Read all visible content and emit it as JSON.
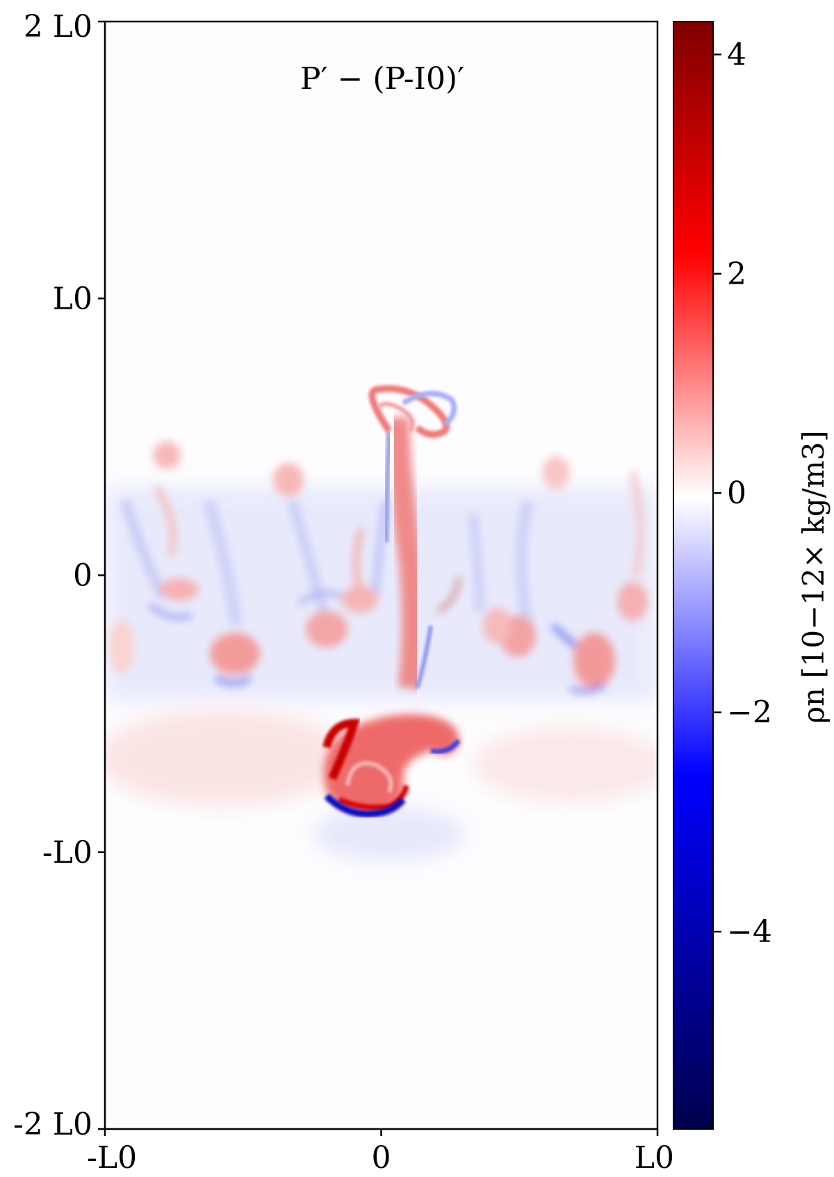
{
  "chart_data": {
    "type": "heatmap",
    "title": "P′ − (P-I0)′",
    "x_ticks": [
      {
        "value": -1,
        "label": "-L0"
      },
      {
        "value": 0,
        "label": "0"
      },
      {
        "value": 1,
        "label": "L0"
      }
    ],
    "y_ticks": [
      {
        "value": 2,
        "label": "2 L0"
      },
      {
        "value": 1,
        "label": "L0"
      },
      {
        "value": 0,
        "label": "0"
      },
      {
        "value": -1,
        "label": "-L0"
      },
      {
        "value": -2,
        "label": "-2 L0"
      }
    ],
    "xlim": [
      -1,
      1
    ],
    "ylim": [
      -2,
      2
    ],
    "colorbar": {
      "label": "ρn [10−12× kg/m3]",
      "colormap": "seismic",
      "range": [
        -5.8,
        4.3
      ],
      "ticks": [
        4,
        2,
        0,
        -2,
        -4
      ],
      "tick_labels": [
        "4",
        "2",
        "0",
        "−2",
        "−4"
      ]
    },
    "features": [
      {
        "kind": "mushroom-plume",
        "x": -0.05,
        "y": -0.78,
        "value": 3.5
      },
      {
        "kind": "plume-lower-edge",
        "x": -0.08,
        "y": -0.82,
        "value": -5.2
      },
      {
        "kind": "plume-stem",
        "x": 0.08,
        "y": -0.3,
        "value": 1.8
      },
      {
        "kind": "rolled-cap",
        "x": 0.1,
        "y": 0.65,
        "value": 1.2
      },
      {
        "kind": "fingers",
        "x_range": [
          -0.9,
          0.9
        ],
        "y_range": [
          -0.4,
          0.45
        ],
        "value_range": [
          -1.0,
          1.2
        ]
      }
    ]
  }
}
